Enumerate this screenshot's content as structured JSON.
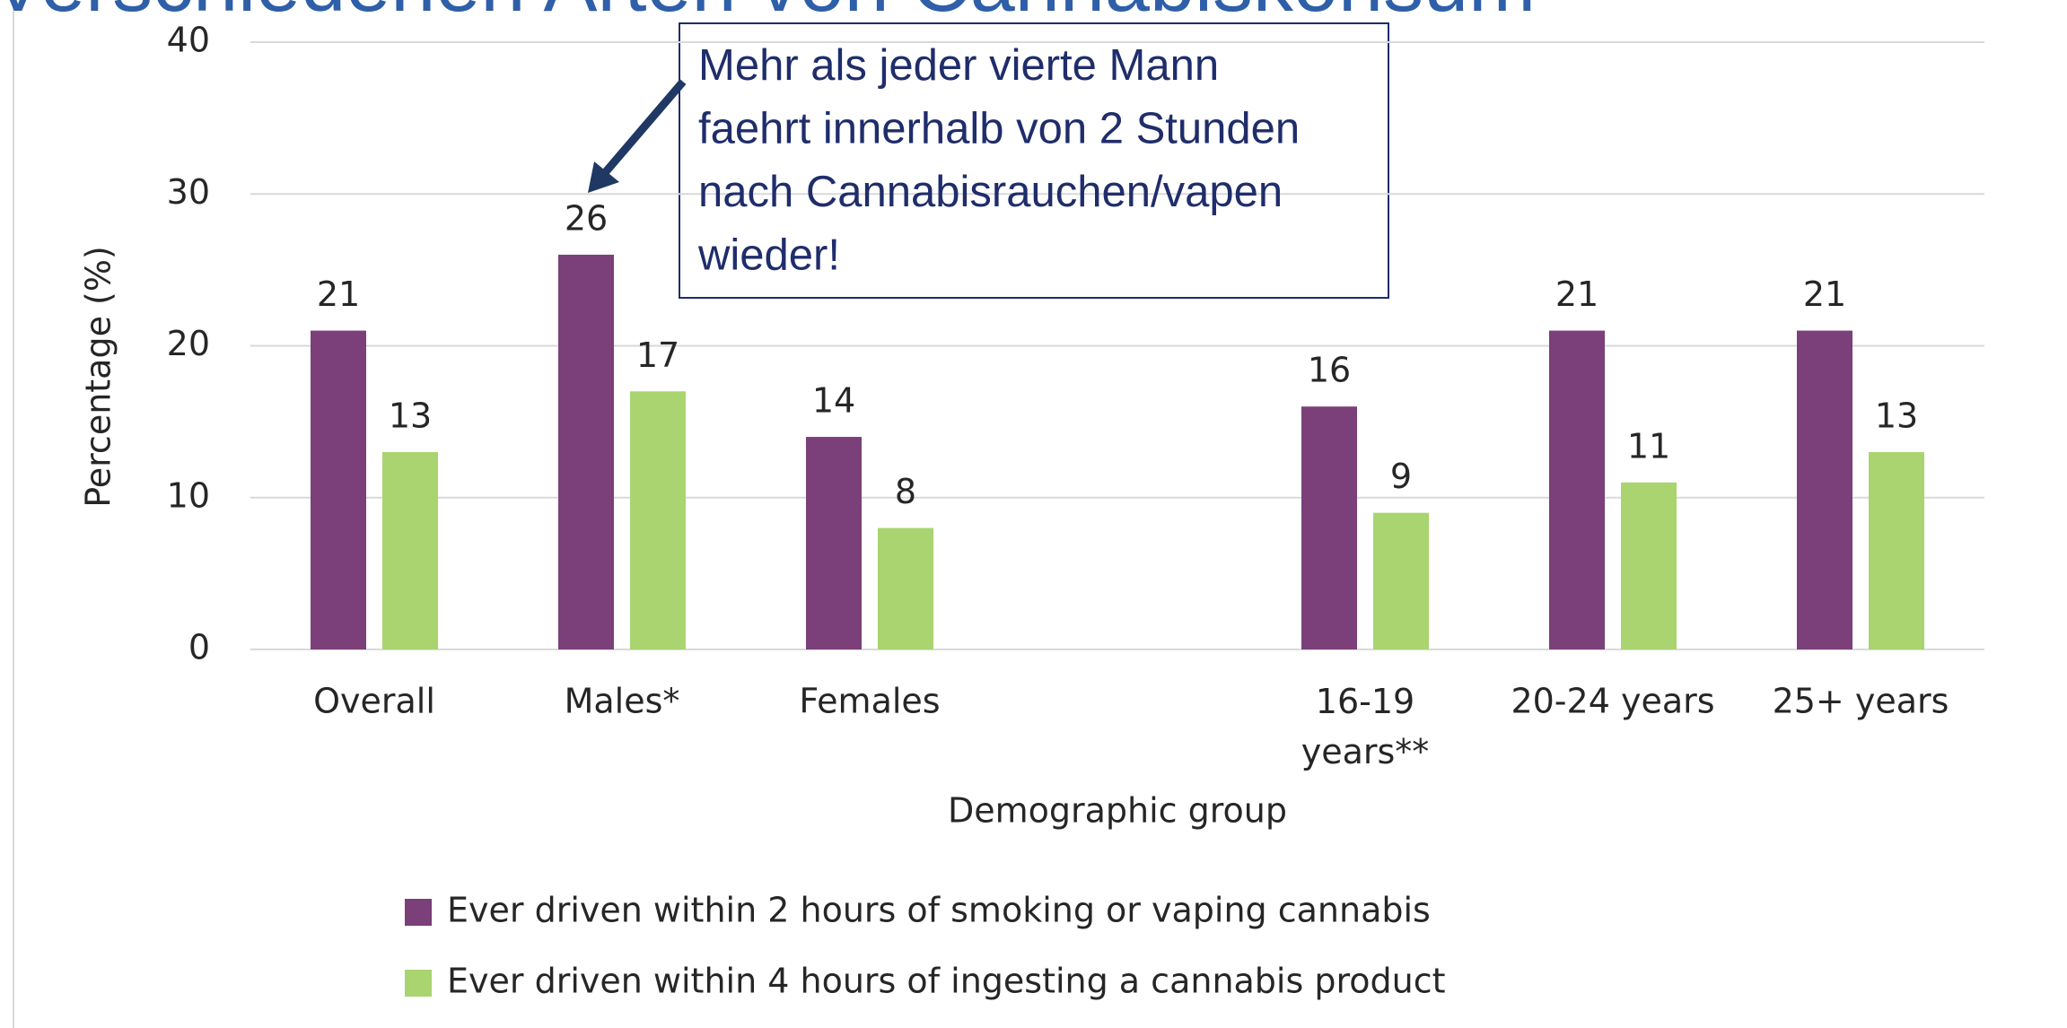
{
  "chart_data": {
    "type": "bar",
    "title": "Verschiedenen Arten von Cannabiskonsum",
    "categories": [
      "Overall",
      "Males*",
      "Females",
      null,
      "16-19 years**",
      "20-24 years",
      "25+ years"
    ],
    "series": [
      {
        "name": "Ever driven within 2 hours of smoking or vaping cannabis",
        "color": "#7b3f7a",
        "values": [
          21,
          26,
          14,
          null,
          16,
          21,
          21
        ]
      },
      {
        "name": "Ever driven within 4 hours of ingesting a cannabis product",
        "color": "#a9d46f",
        "values": [
          13,
          17,
          8,
          null,
          9,
          11,
          13
        ]
      }
    ],
    "ylabel": "Percentage (%)",
    "xlabel": "Demographic group",
    "ylim": [
      0,
      40
    ],
    "yticks": [
      0,
      10,
      20,
      30,
      40
    ],
    "grid": true,
    "legend": "bottom",
    "annotation": {
      "lines": [
        "Mehr als jeder vierte Mann",
        "faehrt innerhalb von 2 Stunden",
        "nach Cannabisrauchen/vapen",
        "wieder!"
      ]
    }
  }
}
